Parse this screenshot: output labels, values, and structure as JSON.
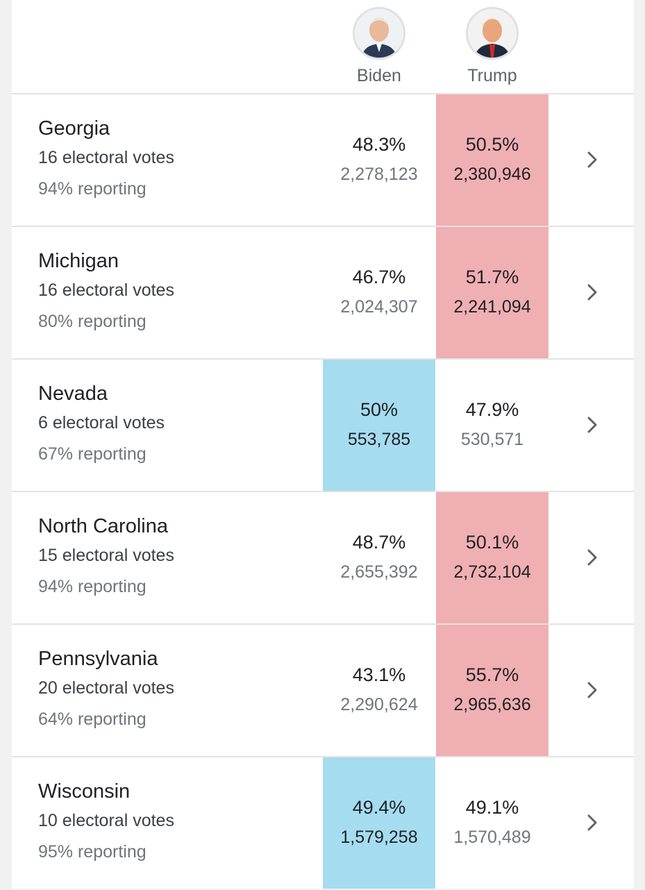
{
  "candidates": {
    "biden": {
      "name": "Biden",
      "party_color": "#a5dcf0"
    },
    "trump": {
      "name": "Trump",
      "party_color": "#f0afb2"
    }
  },
  "states": [
    {
      "name": "Georgia",
      "electoral_votes": "16 electoral votes",
      "reporting": "94% reporting",
      "biden_pct": "48.3%",
      "biden_votes": "2,278,123",
      "trump_pct": "50.5%",
      "trump_votes": "2,380,946",
      "leader": "trump"
    },
    {
      "name": "Michigan",
      "electoral_votes": "16 electoral votes",
      "reporting": "80% reporting",
      "biden_pct": "46.7%",
      "biden_votes": "2,024,307",
      "trump_pct": "51.7%",
      "trump_votes": "2,241,094",
      "leader": "trump"
    },
    {
      "name": "Nevada",
      "electoral_votes": "6 electoral votes",
      "reporting": "67% reporting",
      "biden_pct": "50%",
      "biden_votes": "553,785",
      "trump_pct": "47.9%",
      "trump_votes": "530,571",
      "leader": "biden"
    },
    {
      "name": "North Carolina",
      "electoral_votes": "15 electoral votes",
      "reporting": "94% reporting",
      "biden_pct": "48.7%",
      "biden_votes": "2,655,392",
      "trump_pct": "50.1%",
      "trump_votes": "2,732,104",
      "leader": "trump"
    },
    {
      "name": "Pennsylvania",
      "electoral_votes": "20 electoral votes",
      "reporting": "64% reporting",
      "biden_pct": "43.1%",
      "biden_votes": "2,290,624",
      "trump_pct": "55.7%",
      "trump_votes": "2,965,636",
      "leader": "trump"
    },
    {
      "name": "Wisconsin",
      "electoral_votes": "10 electoral votes",
      "reporting": "95% reporting",
      "biden_pct": "49.4%",
      "biden_votes": "1,579,258",
      "trump_pct": "49.1%",
      "trump_votes": "1,570,489",
      "leader": "biden"
    }
  ],
  "icons": {
    "row_action": "chevron-right-icon",
    "avatar": "candidate-avatar"
  }
}
